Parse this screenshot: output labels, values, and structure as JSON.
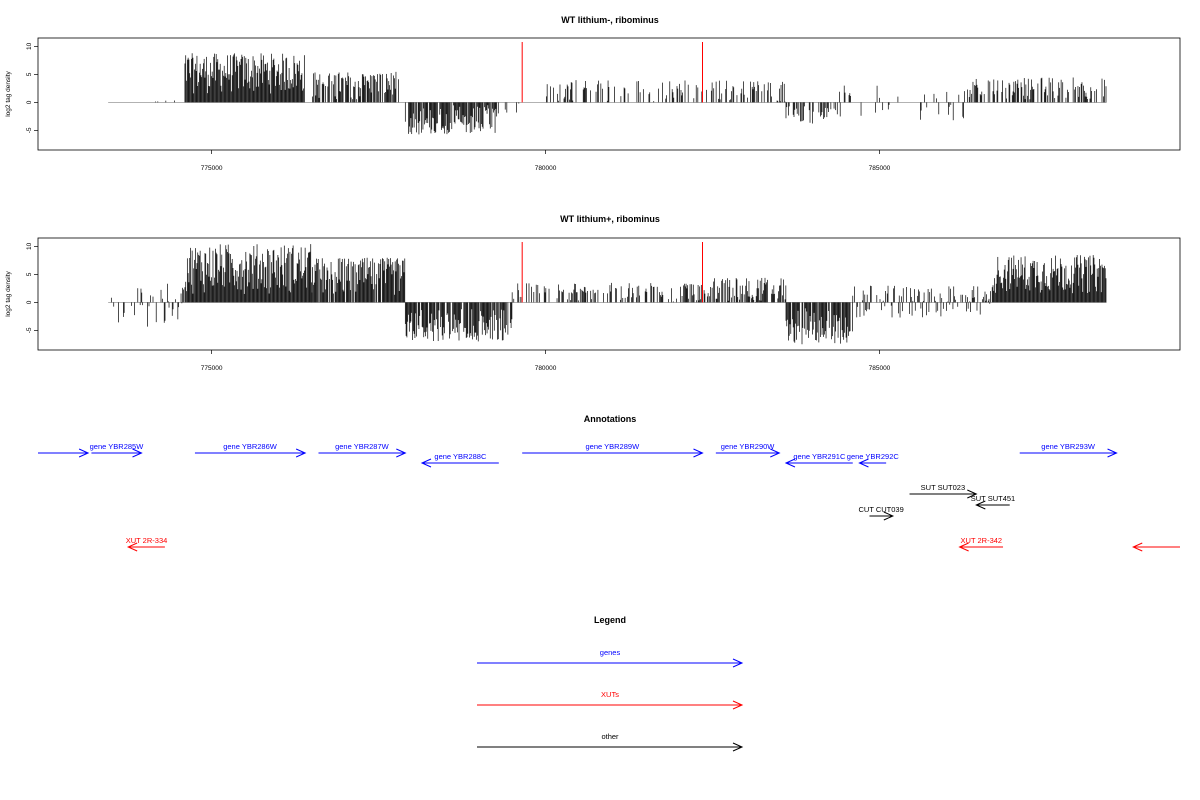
{
  "colors": {
    "gene": "#0000ff",
    "xut": "#ff0000",
    "other": "#000000",
    "marker": "#ff0000",
    "bar": "#000000",
    "baseline": "#999999"
  },
  "chart_data": [
    {
      "type": "bar",
      "title": "WT lithium-, ribominus",
      "ylabel": "log2 tag density",
      "xlim": [
        772400,
        789500
      ],
      "ylim": [
        -8.5,
        11.5
      ],
      "xticks": [
        775000,
        780000,
        785000
      ],
      "xtick_labels": [
        "775000",
        "780000",
        "785000"
      ],
      "yticks": [
        -5,
        0,
        5,
        10
      ],
      "ytick_labels": [
        "-5",
        "0",
        "5",
        "10"
      ],
      "markers_x": [
        779650,
        782350
      ],
      "regions": [
        {
          "start": 773450,
          "end": 774600,
          "min": 0,
          "max": 0.5,
          "density": 0.05
        },
        {
          "start": 774600,
          "end": 776400,
          "min": 1.5,
          "max": 8.8,
          "density": 1.0
        },
        {
          "start": 776500,
          "end": 777800,
          "min": 0.5,
          "max": 5.5,
          "density": 0.7
        },
        {
          "start": 777900,
          "end": 779300,
          "min": -5.8,
          "max": -0.5,
          "density": 0.85
        },
        {
          "start": 779300,
          "end": 779650,
          "min": -2.5,
          "max": 0,
          "density": 0.2
        },
        {
          "start": 780000,
          "end": 782350,
          "min": 0,
          "max": 4,
          "density": 0.35
        },
        {
          "start": 782350,
          "end": 783600,
          "min": 0,
          "max": 4,
          "density": 0.35
        },
        {
          "start": 783600,
          "end": 784400,
          "min": -3.8,
          "max": -0.5,
          "density": 0.45
        },
        {
          "start": 784400,
          "end": 786400,
          "min": -3.2,
          "max": 3,
          "density": 0.25
        },
        {
          "start": 786400,
          "end": 788400,
          "min": 0.5,
          "max": 4.5,
          "density": 0.55
        }
      ]
    },
    {
      "type": "bar",
      "title": "WT lithium+, ribominus",
      "ylabel": "log2 tag density",
      "xlim": [
        772400,
        789500
      ],
      "ylim": [
        -8.5,
        11.5
      ],
      "xticks": [
        775000,
        780000,
        785000
      ],
      "xtick_labels": [
        "775000",
        "780000",
        "785000"
      ],
      "yticks": [
        -5,
        0,
        5,
        10
      ],
      "ytick_labels": [
        "-5",
        "0",
        "5",
        "10"
      ],
      "markers_x": [
        779650,
        782350
      ],
      "regions": [
        {
          "start": 773450,
          "end": 774600,
          "min": -4.5,
          "max": 3.5,
          "density": 0.35
        },
        {
          "start": 774600,
          "end": 776500,
          "min": 1.5,
          "max": 10.5,
          "density": 1.0
        },
        {
          "start": 776500,
          "end": 777900,
          "min": 1,
          "max": 8,
          "density": 0.9
        },
        {
          "start": 777900,
          "end": 779500,
          "min": -7,
          "max": -1,
          "density": 0.9
        },
        {
          "start": 779500,
          "end": 782350,
          "min": 0,
          "max": 3.5,
          "density": 0.45
        },
        {
          "start": 782350,
          "end": 783600,
          "min": 0,
          "max": 4.5,
          "density": 0.7
        },
        {
          "start": 783600,
          "end": 784600,
          "min": -7.5,
          "max": -1,
          "density": 0.9
        },
        {
          "start": 784600,
          "end": 786700,
          "min": -3,
          "max": 3,
          "density": 0.55
        },
        {
          "start": 786700,
          "end": 788400,
          "min": 1.5,
          "max": 8.5,
          "density": 1.0
        }
      ]
    }
  ],
  "annotations": {
    "title": "Annotations",
    "features": [
      {
        "label": "",
        "type": "gene",
        "start": 772400,
        "end": 773150,
        "strand": "+",
        "track": 0
      },
      {
        "label": "gene YBR285W",
        "type": "gene",
        "start": 773200,
        "end": 773950,
        "strand": "+",
        "track": 0
      },
      {
        "label": "gene YBR286W",
        "type": "gene",
        "start": 774750,
        "end": 776400,
        "strand": "+",
        "track": 0
      },
      {
        "label": "gene YBR287W",
        "type": "gene",
        "start": 776600,
        "end": 777900,
        "strand": "+",
        "track": 0
      },
      {
        "label": "gene YBR288C",
        "type": "gene",
        "start": 778150,
        "end": 779300,
        "strand": "-",
        "track": 1
      },
      {
        "label": "gene YBR289W",
        "type": "gene",
        "start": 779650,
        "end": 782350,
        "strand": "+",
        "track": 0
      },
      {
        "label": "gene YBR290W",
        "type": "gene",
        "start": 782550,
        "end": 783500,
        "strand": "+",
        "track": 0
      },
      {
        "label": "gene YBR291C",
        "type": "gene",
        "start": 783600,
        "end": 784600,
        "strand": "-",
        "track": 1
      },
      {
        "label": "gene YBR292C",
        "type": "gene",
        "start": 784700,
        "end": 785100,
        "strand": "-",
        "track": 1
      },
      {
        "label": "gene YBR293W",
        "type": "gene",
        "start": 787100,
        "end": 788550,
        "strand": "+",
        "track": 0
      },
      {
        "label": "SUT SUT023",
        "type": "other",
        "start": 785450,
        "end": 786450,
        "strand": "+",
        "track": 2
      },
      {
        "label": "SUT SUT451",
        "type": "other",
        "start": 786450,
        "end": 786950,
        "strand": "-",
        "track": 3
      },
      {
        "label": "CUT CUT039",
        "type": "other",
        "start": 784850,
        "end": 785200,
        "strand": "+",
        "track": 4
      },
      {
        "label": "XUT 2R-334",
        "type": "xut",
        "start": 773750,
        "end": 774300,
        "strand": "-",
        "track": 5
      },
      {
        "label": "XUT 2R-342",
        "type": "xut",
        "start": 786200,
        "end": 786850,
        "strand": "-",
        "track": 5
      },
      {
        "label": "",
        "type": "xut",
        "start": 788800,
        "end": 789500,
        "strand": "-",
        "track": 5
      }
    ]
  },
  "legend": {
    "title": "Legend",
    "items": [
      {
        "label": "genes",
        "type": "gene"
      },
      {
        "label": "XUTs",
        "type": "xut"
      },
      {
        "label": "other",
        "type": "other"
      }
    ]
  }
}
